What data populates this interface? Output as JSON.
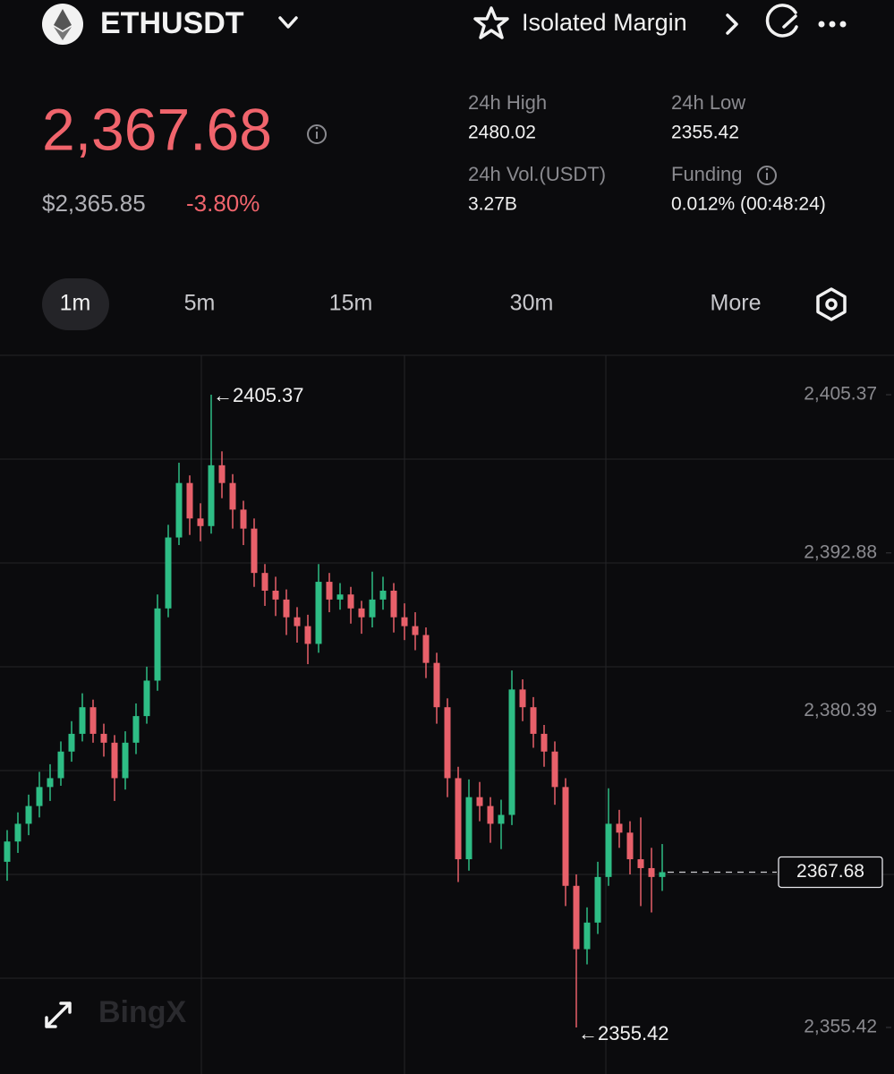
{
  "header": {
    "symbol": "ETHUSDT",
    "margin_mode": "Isolated Margin"
  },
  "price": {
    "last": "2,367.68",
    "usd": "$2,365.85",
    "change": "-3.80%"
  },
  "stats": [
    {
      "label": "24h High",
      "value": "2480.02"
    },
    {
      "label": "24h Low",
      "value": "2355.42"
    },
    {
      "label": "24h Vol.(USDT)",
      "value": "3.27B"
    },
    {
      "label": "Funding",
      "value": "0.012% (00:48:24)"
    }
  ],
  "timeframes": [
    "1m",
    "5m",
    "15m",
    "30m",
    "More"
  ],
  "chart_data": {
    "type": "candlestick",
    "colors": {
      "up": "#2ebd85",
      "down": "#e8606a"
    },
    "ylim": [
      2352.1,
      2408.48
    ],
    "yticks": [
      {
        "value": 2405.37,
        "label": "2,405.37"
      },
      {
        "value": 2392.88,
        "label": "2,392.88"
      },
      {
        "value": 2380.39,
        "label": "2,380.39"
      },
      {
        "value": 2355.42,
        "label": "2,355.42"
      }
    ],
    "last_price": {
      "value": 2367.68,
      "label": "2367.68"
    },
    "annotations": [
      {
        "text": "←2405.37",
        "value": 2405.37,
        "candle": 19
      },
      {
        "text": "←2355.42",
        "value": 2355.42,
        "candle": 53
      }
    ],
    "watermark": "BingX",
    "candles": [
      [
        2368.5,
        2371.0,
        2367.0,
        2370.1
      ],
      [
        2370.1,
        2372.4,
        2369.2,
        2371.5
      ],
      [
        2371.5,
        2373.8,
        2370.6,
        2372.9
      ],
      [
        2372.9,
        2375.6,
        2372.0,
        2374.4
      ],
      [
        2374.4,
        2376.2,
        2373.3,
        2375.1
      ],
      [
        2375.1,
        2378.0,
        2374.5,
        2377.2
      ],
      [
        2377.2,
        2379.6,
        2376.4,
        2378.6
      ],
      [
        2378.6,
        2381.8,
        2378.0,
        2380.7
      ],
      [
        2380.7,
        2381.3,
        2377.9,
        2378.6
      ],
      [
        2378.6,
        2379.4,
        2376.8,
        2377.9
      ],
      [
        2377.9,
        2378.5,
        2373.3,
        2375.1
      ],
      [
        2375.1,
        2378.8,
        2374.2,
        2377.9
      ],
      [
        2377.9,
        2381.0,
        2377.0,
        2380.0
      ],
      [
        2380.0,
        2383.9,
        2379.4,
        2382.8
      ],
      [
        2382.8,
        2389.6,
        2382.0,
        2388.5
      ],
      [
        2388.5,
        2395.1,
        2387.8,
        2394.1
      ],
      [
        2394.1,
        2400.0,
        2393.5,
        2398.4
      ],
      [
        2398.4,
        2399.0,
        2394.3,
        2395.6
      ],
      [
        2395.6,
        2396.8,
        2393.8,
        2395.0
      ],
      [
        2395.0,
        2405.37,
        2394.4,
        2399.8
      ],
      [
        2399.8,
        2400.9,
        2397.2,
        2398.4
      ],
      [
        2398.4,
        2399.1,
        2394.8,
        2396.3
      ],
      [
        2396.3,
        2397.0,
        2393.5,
        2394.8
      ],
      [
        2394.8,
        2395.6,
        2390.2,
        2391.3
      ],
      [
        2391.3,
        2392.0,
        2388.7,
        2389.9
      ],
      [
        2389.9,
        2391.0,
        2387.9,
        2389.2
      ],
      [
        2389.2,
        2390.0,
        2386.4,
        2387.8
      ],
      [
        2387.8,
        2388.6,
        2385.8,
        2387.1
      ],
      [
        2387.1,
        2388.0,
        2384.1,
        2385.7
      ],
      [
        2385.7,
        2392.0,
        2385.0,
        2390.6
      ],
      [
        2390.6,
        2391.3,
        2388.2,
        2389.2
      ],
      [
        2389.2,
        2390.5,
        2388.4,
        2389.6
      ],
      [
        2389.6,
        2390.2,
        2387.3,
        2388.5
      ],
      [
        2388.5,
        2389.1,
        2386.5,
        2387.8
      ],
      [
        2387.8,
        2391.4,
        2387.0,
        2389.2
      ],
      [
        2389.2,
        2391.0,
        2388.4,
        2389.9
      ],
      [
        2389.9,
        2390.5,
        2386.6,
        2387.8
      ],
      [
        2387.8,
        2388.9,
        2386.0,
        2387.1
      ],
      [
        2387.1,
        2388.2,
        2385.2,
        2386.4
      ],
      [
        2386.4,
        2387.0,
        2383.0,
        2384.2
      ],
      [
        2384.2,
        2385.0,
        2379.4,
        2380.7
      ],
      [
        2380.7,
        2381.4,
        2373.6,
        2375.1
      ],
      [
        2375.1,
        2376.0,
        2366.9,
        2368.7
      ],
      [
        2368.7,
        2375.0,
        2367.8,
        2373.6
      ],
      [
        2373.6,
        2374.8,
        2371.7,
        2372.9
      ],
      [
        2372.9,
        2373.6,
        2370.0,
        2371.5
      ],
      [
        2371.5,
        2373.4,
        2369.5,
        2372.2
      ],
      [
        2372.2,
        2383.6,
        2371.4,
        2382.1
      ],
      [
        2382.1,
        2382.9,
        2379.6,
        2380.7
      ],
      [
        2380.7,
        2381.5,
        2377.5,
        2378.6
      ],
      [
        2378.6,
        2379.3,
        2376.0,
        2377.2
      ],
      [
        2377.2,
        2378.0,
        2373.0,
        2374.4
      ],
      [
        2374.4,
        2375.1,
        2365.0,
        2366.6
      ],
      [
        2366.6,
        2367.5,
        2355.42,
        2361.6
      ],
      [
        2361.6,
        2364.9,
        2360.4,
        2363.7
      ],
      [
        2363.7,
        2368.5,
        2362.8,
        2367.3
      ],
      [
        2367.3,
        2374.3,
        2366.6,
        2371.5
      ],
      [
        2371.5,
        2372.6,
        2369.6,
        2370.8
      ],
      [
        2370.8,
        2371.7,
        2367.5,
        2368.7
      ],
      [
        2368.7,
        2372.0,
        2365.0,
        2368.0
      ],
      [
        2368.0,
        2369.6,
        2364.5,
        2367.3
      ],
      [
        2367.3,
        2369.9,
        2366.2,
        2367.68
      ]
    ]
  }
}
